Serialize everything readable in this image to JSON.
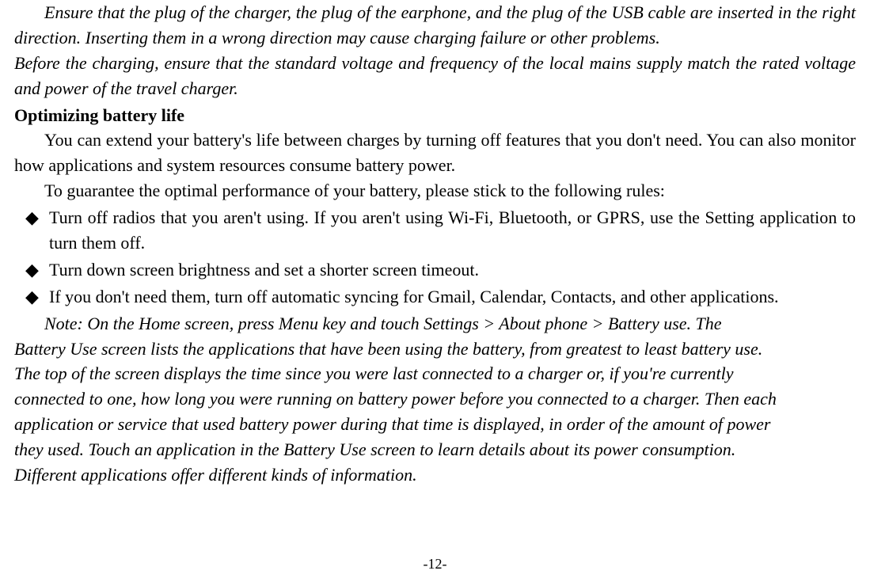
{
  "warning": {
    "line1": "Ensure that the plug of the charger, the plug of the earphone, and the plug of the USB cable are inserted in the right direction. Inserting them in a wrong direction may cause charging failure or other problems.",
    "line2": "Before the charging, ensure that the standard voltage and frequency of the local mains supply match the rated voltage and power of the travel charger."
  },
  "heading": "Optimizing battery life",
  "intro1": "You can extend your battery's life between charges by turning off features that you don't need. You can also monitor how applications and system resources consume battery power.",
  "intro2": "To guarantee the optimal performance of your battery, please stick to the following rules:",
  "bullets": [
    "Turn off radios that you aren't using. If you aren't using Wi-Fi, Bluetooth, or GPRS, use the Setting application to turn them off.",
    "Turn down screen brightness and set a shorter screen timeout.",
    "If you don't need them, turn off automatic syncing for Gmail, Calendar, Contacts, and other applications."
  ],
  "note": {
    "l1": "Note: On the Home screen, press Menu key and touch Settings > About phone > Battery use. The",
    "l2": "Battery Use screen lists the applications that have been using the battery, from greatest to least battery use.",
    "l3": "The top of the screen displays the time since you were last connected to a charger or, if you're currently",
    "l4": "connected to one, how long you were running on battery power before you connected to a charger. Then each",
    "l5": "application or service that used battery power during that time is displayed, in order of the amount of power",
    "l6": "they used. Touch an application in the Battery Use screen to learn details about its power consumption.",
    "l7": "Different applications offer different kinds of information."
  },
  "page_number": "-12-"
}
